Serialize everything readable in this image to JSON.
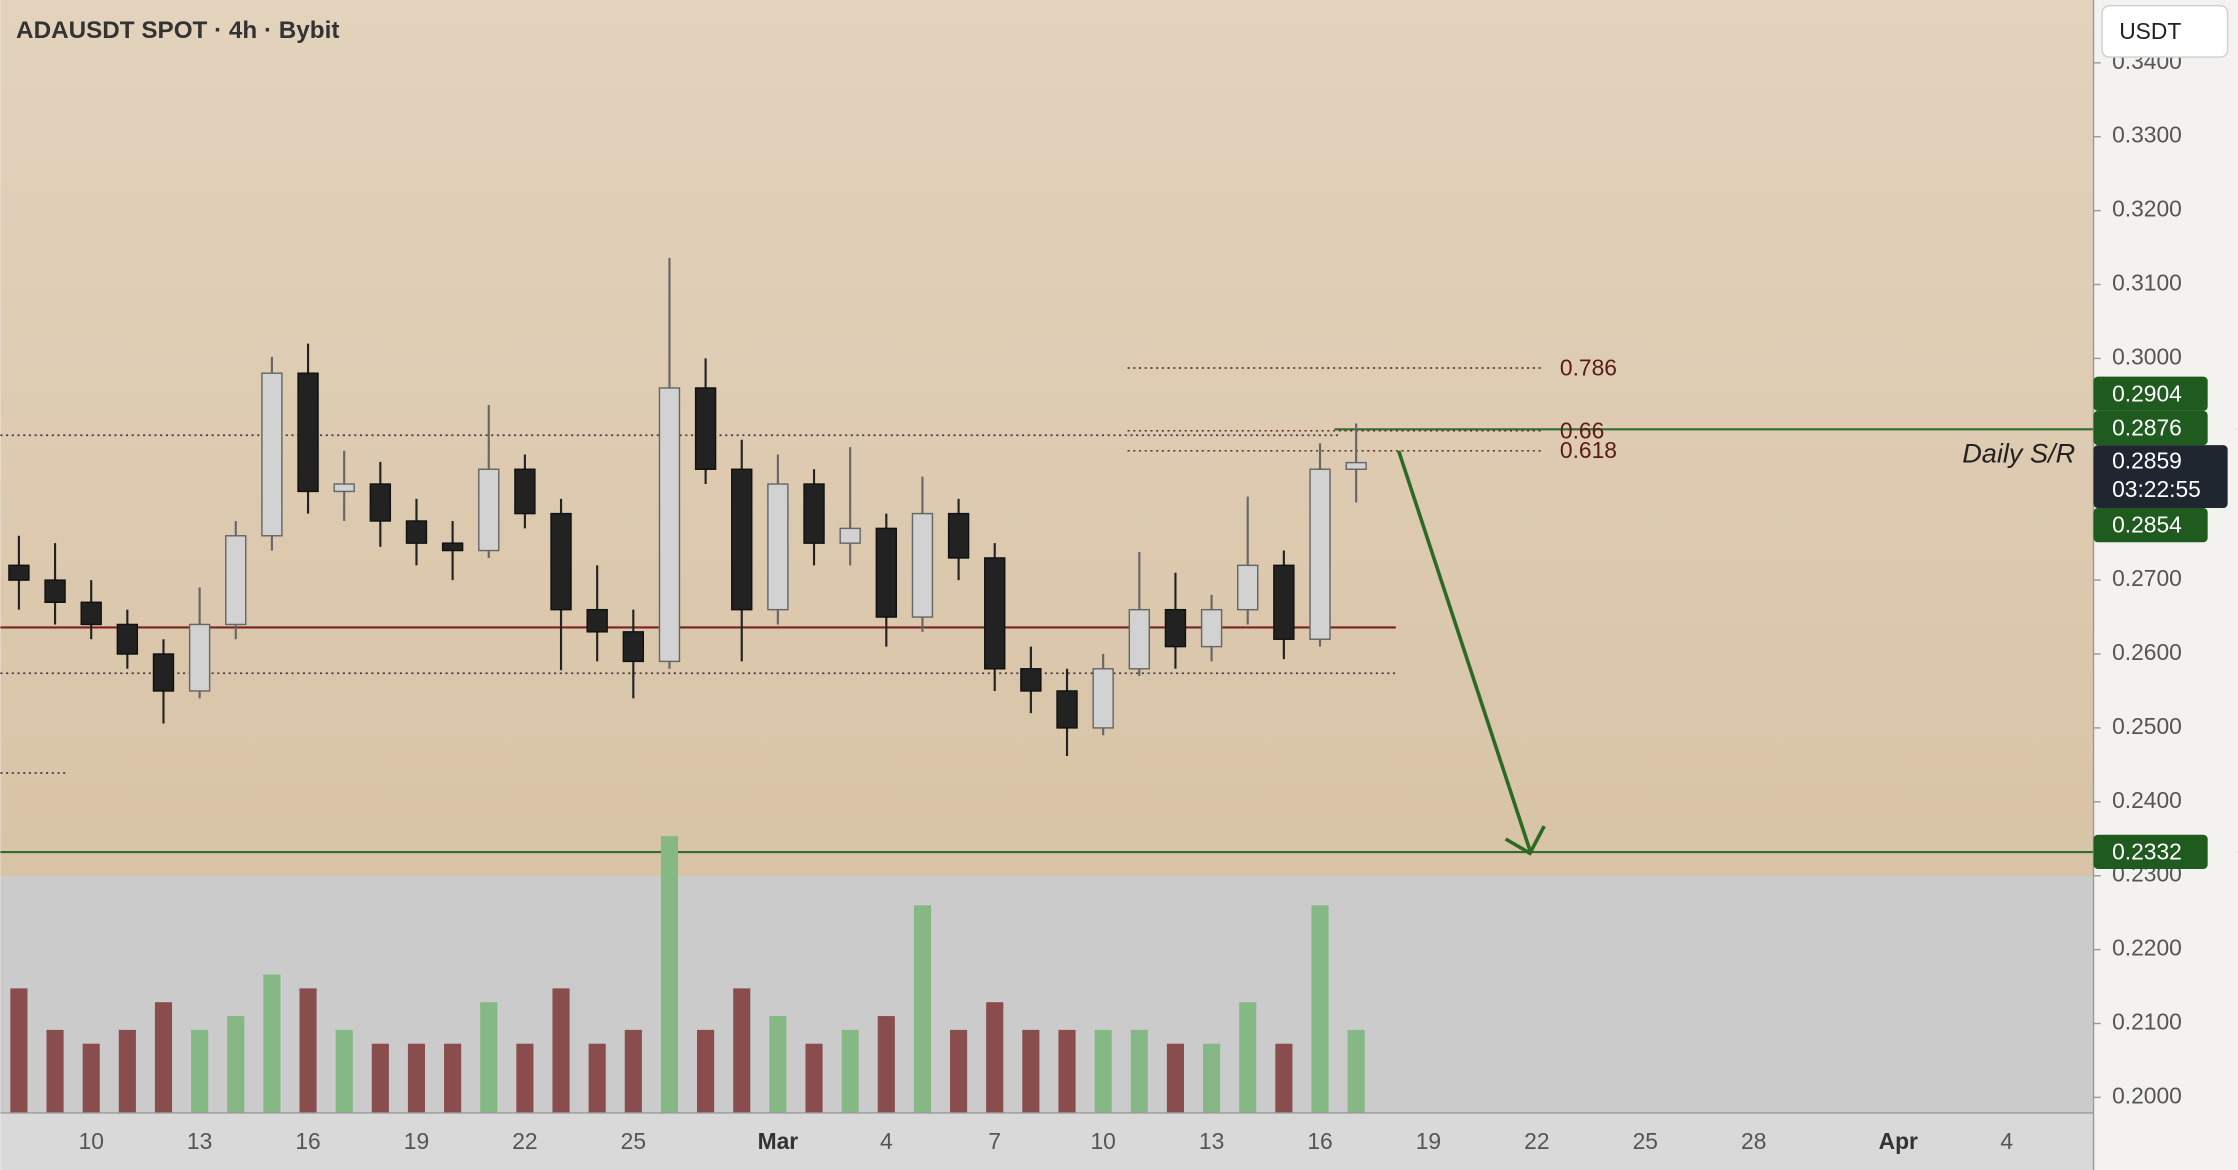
{
  "chart_data": {
    "type": "candlestick",
    "title": "ADAUSDT SPOT · 4h · Bybit",
    "currency": "USDT",
    "categories": [
      null,
      null,
      "10",
      null,
      null,
      "13",
      null,
      null,
      "16",
      null,
      null,
      "19",
      null,
      null,
      "22",
      null,
      null,
      "25",
      null,
      null,
      null,
      "Mar",
      null,
      null,
      "4",
      null,
      null,
      "7",
      null,
      null,
      "10",
      null,
      null,
      "13",
      null,
      null,
      "16",
      null,
      null,
      "19",
      null,
      null,
      "22",
      null,
      null,
      "25",
      null,
      null,
      "28",
      null,
      null,
      null,
      "Apr",
      null,
      null,
      "4",
      null
    ],
    "open": [
      0.272,
      0.27,
      0.267,
      0.264,
      0.26,
      0.255,
      0.264,
      0.276,
      0.298,
      0.282,
      0.283,
      0.278,
      0.275,
      0.274,
      0.285,
      0.279,
      0.266,
      0.263,
      0.259,
      0.296,
      0.285,
      0.266,
      0.283,
      0.275,
      0.277,
      0.265,
      0.279,
      0.273,
      0.258,
      0.255,
      0.25,
      0.258,
      0.266,
      0.261,
      0.266,
      0.272,
      0.262,
      0.285,
      null,
      null,
      null,
      null,
      null,
      null,
      null,
      null,
      null,
      null,
      null,
      null,
      null,
      null,
      null,
      null,
      null,
      null,
      null
    ],
    "high": [
      0.276,
      0.275,
      0.27,
      0.266,
      0.262,
      0.269,
      0.278,
      0.3002,
      0.302,
      0.2875,
      0.286,
      0.281,
      0.278,
      0.2937,
      0.287,
      0.281,
      0.272,
      0.266,
      0.3136,
      0.3,
      0.289,
      0.287,
      0.285,
      0.288,
      0.279,
      0.284,
      0.281,
      0.275,
      0.261,
      0.258,
      0.26,
      0.2738,
      0.271,
      0.268,
      0.2813,
      0.274,
      0.2885,
      0.2912,
      null,
      null,
      null,
      null,
      null,
      null,
      null,
      null,
      null,
      null,
      null,
      null,
      null,
      null,
      null,
      null,
      null,
      null,
      null
    ],
    "low": [
      0.266,
      0.264,
      0.262,
      0.258,
      0.2506,
      0.254,
      0.262,
      0.274,
      0.279,
      0.278,
      0.2745,
      0.272,
      0.27,
      0.273,
      0.277,
      0.2578,
      0.259,
      0.254,
      0.258,
      0.283,
      0.259,
      0.264,
      0.272,
      0.272,
      0.261,
      0.263,
      0.27,
      0.255,
      0.252,
      0.2462,
      0.249,
      0.257,
      0.258,
      0.259,
      0.264,
      0.2593,
      0.261,
      0.2805,
      null,
      null,
      null,
      null,
      null,
      null,
      null,
      null,
      null,
      null,
      null,
      null,
      null,
      null,
      null,
      null,
      null,
      null,
      null
    ],
    "close": [
      0.27,
      0.267,
      0.264,
      0.26,
      0.255,
      0.264,
      0.276,
      0.298,
      0.282,
      0.283,
      0.278,
      0.275,
      0.274,
      0.285,
      0.279,
      0.266,
      0.263,
      0.259,
      0.296,
      0.285,
      0.266,
      0.283,
      0.275,
      0.277,
      0.265,
      0.279,
      0.273,
      0.258,
      0.255,
      0.25,
      0.258,
      0.266,
      0.261,
      0.266,
      0.272,
      0.262,
      0.285,
      0.2859,
      null,
      null,
      null,
      null,
      null,
      null,
      null,
      null,
      null,
      null,
      null,
      null,
      null,
      null,
      null,
      null,
      null,
      null,
      null
    ],
    "volume": [
      45,
      30,
      25,
      30,
      40,
      30,
      35,
      50,
      45,
      30,
      25,
      25,
      25,
      40,
      25,
      45,
      25,
      30,
      100,
      30,
      45,
      35,
      25,
      30,
      35,
      75,
      30,
      40,
      30,
      30,
      30,
      30,
      25,
      25,
      40,
      25,
      75,
      30,
      null,
      null,
      null,
      null,
      null,
      null,
      null,
      null,
      null,
      null,
      null,
      null,
      null,
      null,
      null,
      null,
      null,
      null,
      null
    ],
    "vlim": [
      0,
      100
    ],
    "ylim": [
      0.1979,
      0.3485
    ],
    "yticks": [
      {
        "value": 0.2,
        "label": "0.2000"
      },
      {
        "value": 0.21,
        "label": "0.2100"
      },
      {
        "value": 0.22,
        "label": "0.2200"
      },
      {
        "value": 0.23,
        "label": "0.2300"
      },
      {
        "value": 0.24,
        "label": "0.2400"
      },
      {
        "value": 0.25,
        "label": "0.2500"
      },
      {
        "value": 0.26,
        "label": "0.2600"
      },
      {
        "value": 0.27,
        "label": "0.2700"
      },
      {
        "value": 0.28,
        "label": "0.2800"
      },
      {
        "value": 0.29,
        "label": "0.2900"
      },
      {
        "value": 0.3,
        "label": "0.3000"
      },
      {
        "value": 0.31,
        "label": "0.3100"
      },
      {
        "value": 0.32,
        "label": "0.3200"
      },
      {
        "value": 0.33,
        "label": "0.3300"
      },
      {
        "value": 0.34,
        "label": "0.3400"
      }
    ],
    "up_color": "#d2d2d2",
    "down_color": "#222222",
    "volume_up_color": "#86b886",
    "volume_down_color": "#8a4d4d",
    "levels": [
      {
        "price": 0.2904,
        "style": "solid",
        "color": "#2e6e2e"
      },
      {
        "price": 0.2896,
        "style": "dotted",
        "color": "#444444"
      },
      {
        "price": 0.2636,
        "style": "solid",
        "color": "#7a2323"
      },
      {
        "price": 0.2574,
        "style": "dotted",
        "color": "#444444"
      },
      {
        "price": 0.2439,
        "style": "dotted",
        "color": "#444444"
      },
      {
        "price": 0.2332,
        "style": "solid",
        "color": "#2e6e2e"
      }
    ],
    "fib": [
      {
        "ratio": 0.786,
        "price": 0.2987
      },
      {
        "ratio": 0.66,
        "price": 0.2902
      },
      {
        "ratio": 0.618,
        "price": 0.2875
      }
    ],
    "annotation": "Daily S/R",
    "price_badges": [
      0.2904,
      0.2876,
      0.2854,
      0.2332
    ],
    "badge_color": "#1f5a1f",
    "last_price": 0.2859,
    "countdown": "03:22:55"
  }
}
